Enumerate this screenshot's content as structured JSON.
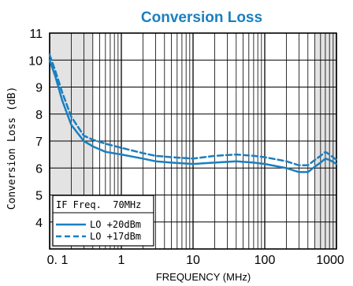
{
  "chart_data": {
    "type": "line",
    "title": "Conversion Loss",
    "xlabel": "FREQUENCY (MHz)",
    "ylabel": "Conversion Loss (dB)",
    "x_scale": "log",
    "xlim": [
      0.1,
      1000
    ],
    "ylim": [
      3,
      11
    ],
    "x_ticks": [
      0.1,
      1,
      10,
      100,
      1000
    ],
    "x_tick_labels": [
      "0. 1",
      "1",
      "10",
      "100",
      "1000"
    ],
    "y_ticks": [
      4,
      5,
      6,
      7,
      8,
      9,
      10,
      11
    ],
    "y_tick_labels": [
      "4",
      "5",
      "6",
      "7",
      "8",
      "9",
      "10",
      "11"
    ],
    "grid": true,
    "shaded_bands": [
      [
        0.1,
        0.4
      ],
      [
        500,
        1000
      ]
    ],
    "legend": {
      "placement": "bottom-left",
      "header": "IF Freq.  70MHz",
      "entries": [
        "LO +20dBm",
        "LO +17dBm"
      ]
    },
    "series": [
      {
        "name": "LO +20dBm",
        "style": "solid",
        "color": "#1a7fc1",
        "x": [
          0.1,
          0.12,
          0.15,
          0.2,
          0.3,
          0.4,
          0.6,
          1,
          2,
          3,
          5,
          10,
          20,
          40,
          70,
          100,
          200,
          300,
          400,
          500,
          600,
          700,
          800,
          1000
        ],
        "y": [
          10.0,
          9.4,
          8.5,
          7.6,
          7.0,
          6.8,
          6.6,
          6.5,
          6.35,
          6.25,
          6.2,
          6.15,
          6.2,
          6.25,
          6.2,
          6.15,
          6.0,
          5.85,
          5.85,
          6.05,
          6.2,
          6.35,
          6.3,
          6.15
        ]
      },
      {
        "name": "LO +17dBm",
        "style": "dashed",
        "color": "#1a7fc1",
        "x": [
          0.1,
          0.12,
          0.15,
          0.2,
          0.3,
          0.4,
          0.6,
          1,
          2,
          3,
          5,
          10,
          20,
          40,
          70,
          100,
          200,
          300,
          400,
          500,
          600,
          700,
          800,
          1000
        ],
        "y": [
          10.2,
          9.6,
          8.8,
          7.9,
          7.2,
          7.05,
          6.9,
          6.75,
          6.55,
          6.45,
          6.4,
          6.35,
          6.45,
          6.5,
          6.45,
          6.4,
          6.25,
          6.1,
          6.1,
          6.3,
          6.45,
          6.6,
          6.5,
          6.3
        ]
      }
    ],
    "colors": {
      "line": "#1a7fc1",
      "title": "#1a7fc1",
      "band": "#e3e3e3",
      "grid": "#000000"
    }
  }
}
